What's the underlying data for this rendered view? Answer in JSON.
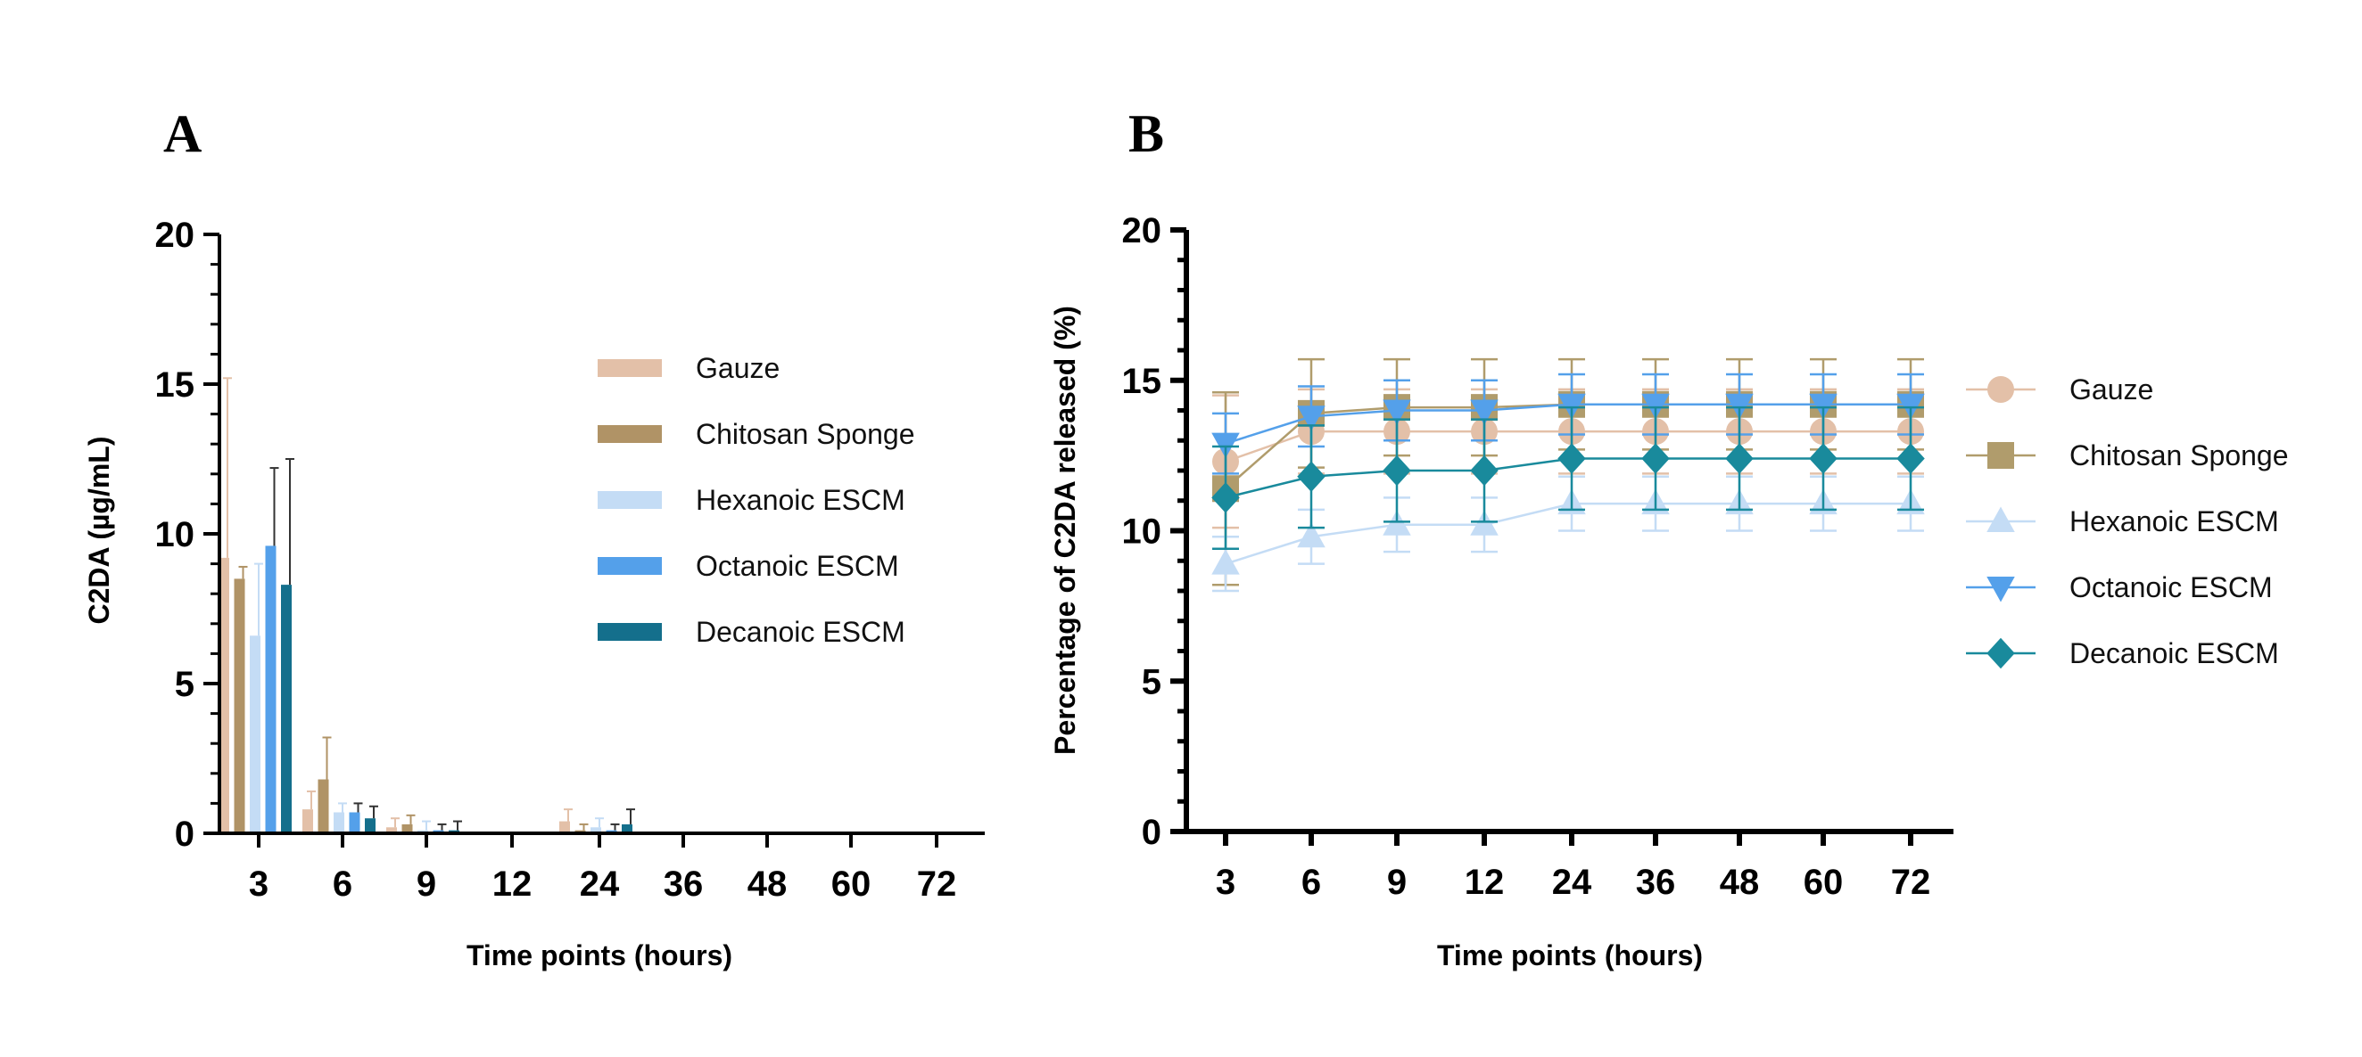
{
  "chart_data": [
    {
      "panel": "A",
      "type": "bar",
      "xlabel": "Time points (hours)",
      "ylabel": "C2DA (µg/mL)",
      "ylim": [
        0,
        20
      ],
      "yticks": [
        "0",
        "5",
        "10",
        "15",
        "20"
      ],
      "categories": [
        "3",
        "6",
        "9",
        "12",
        "24",
        "36",
        "48",
        "60",
        "72"
      ],
      "legend_position": "right",
      "series": [
        {
          "name": "Gauze",
          "color": "#e3c0a8",
          "values": [
            9.2,
            0.8,
            0.2,
            0,
            0.4,
            0,
            0,
            0,
            0
          ],
          "errors": [
            6.0,
            0.6,
            0.3,
            0,
            0.4,
            0,
            0,
            0,
            0
          ]
        },
        {
          "name": "Chitosan Sponge",
          "color": "#b09366",
          "values": [
            8.5,
            1.8,
            0.3,
            0,
            0.1,
            0,
            0,
            0,
            0
          ],
          "errors": [
            0.4,
            1.4,
            0.3,
            0,
            0.2,
            0,
            0,
            0,
            0
          ]
        },
        {
          "name": "Hexanoic ESCM",
          "color": "#c4dcf5",
          "values": [
            6.6,
            0.7,
            0.1,
            0,
            0.2,
            0,
            0,
            0,
            0
          ],
          "errors": [
            2.4,
            0.3,
            0.3,
            0,
            0.3,
            0,
            0,
            0,
            0
          ]
        },
        {
          "name": "Octanoic ESCM",
          "color": "#54a0ea",
          "values": [
            9.6,
            0.7,
            0.1,
            0,
            0.1,
            0,
            0,
            0,
            0
          ],
          "errors": [
            2.6,
            0.3,
            0.2,
            0,
            0.2,
            0,
            0,
            0,
            0
          ]
        },
        {
          "name": "Decanoic ESCM",
          "color": "#146f8c",
          "values": [
            8.3,
            0.5,
            0.1,
            0,
            0.3,
            0,
            0,
            0,
            0
          ],
          "errors": [
            4.2,
            0.4,
            0.3,
            0,
            0.5,
            0,
            0,
            0,
            0
          ]
        }
      ]
    },
    {
      "panel": "B",
      "type": "line",
      "xlabel": "Time points (hours)",
      "ylabel": "Percentage of  C2DA released (%)",
      "ylim": [
        0,
        20
      ],
      "yticks": [
        "0",
        "5",
        "10",
        "15",
        "20"
      ],
      "categories": [
        "3",
        "6",
        "9",
        "12",
        "24",
        "36",
        "48",
        "60",
        "72"
      ],
      "legend_position": "right",
      "series": [
        {
          "name": "Gauze",
          "color": "#e3c0a8",
          "marker": "circle",
          "values": [
            12.3,
            13.3,
            13.3,
            13.3,
            13.3,
            13.3,
            13.3,
            13.3,
            13.3
          ],
          "errors": [
            2.2,
            1.4,
            1.4,
            1.4,
            1.4,
            1.4,
            1.4,
            1.4,
            1.4
          ]
        },
        {
          "name": "Chitosan Sponge",
          "color": "#b09c6c",
          "marker": "square",
          "values": [
            11.4,
            13.9,
            14.1,
            14.1,
            14.2,
            14.2,
            14.2,
            14.2,
            14.2
          ],
          "errors": [
            3.2,
            1.8,
            1.6,
            1.6,
            1.5,
            1.5,
            1.5,
            1.5,
            1.5
          ]
        },
        {
          "name": "Hexanoic ESCM",
          "color": "#c4dcf5",
          "marker": "triangle-up",
          "values": [
            8.9,
            9.8,
            10.2,
            10.2,
            10.9,
            10.9,
            10.9,
            10.9,
            10.9
          ],
          "errors": [
            0.9,
            0.9,
            0.9,
            0.9,
            0.9,
            0.9,
            0.9,
            0.9,
            0.9
          ]
        },
        {
          "name": "Octanoic ESCM",
          "color": "#54a0ea",
          "marker": "triangle-down",
          "values": [
            12.9,
            13.8,
            14.0,
            14.0,
            14.2,
            14.2,
            14.2,
            14.2,
            14.2
          ],
          "errors": [
            1.0,
            1.0,
            1.0,
            1.0,
            1.0,
            1.0,
            1.0,
            1.0,
            1.0
          ]
        },
        {
          "name": "Decanoic ESCM",
          "color": "#198a9c",
          "marker": "diamond",
          "values": [
            11.1,
            11.8,
            12.0,
            12.0,
            12.4,
            12.4,
            12.4,
            12.4,
            12.4
          ],
          "errors": [
            1.7,
            1.7,
            1.7,
            1.7,
            1.7,
            1.7,
            1.7,
            1.7,
            1.7
          ]
        }
      ]
    }
  ]
}
